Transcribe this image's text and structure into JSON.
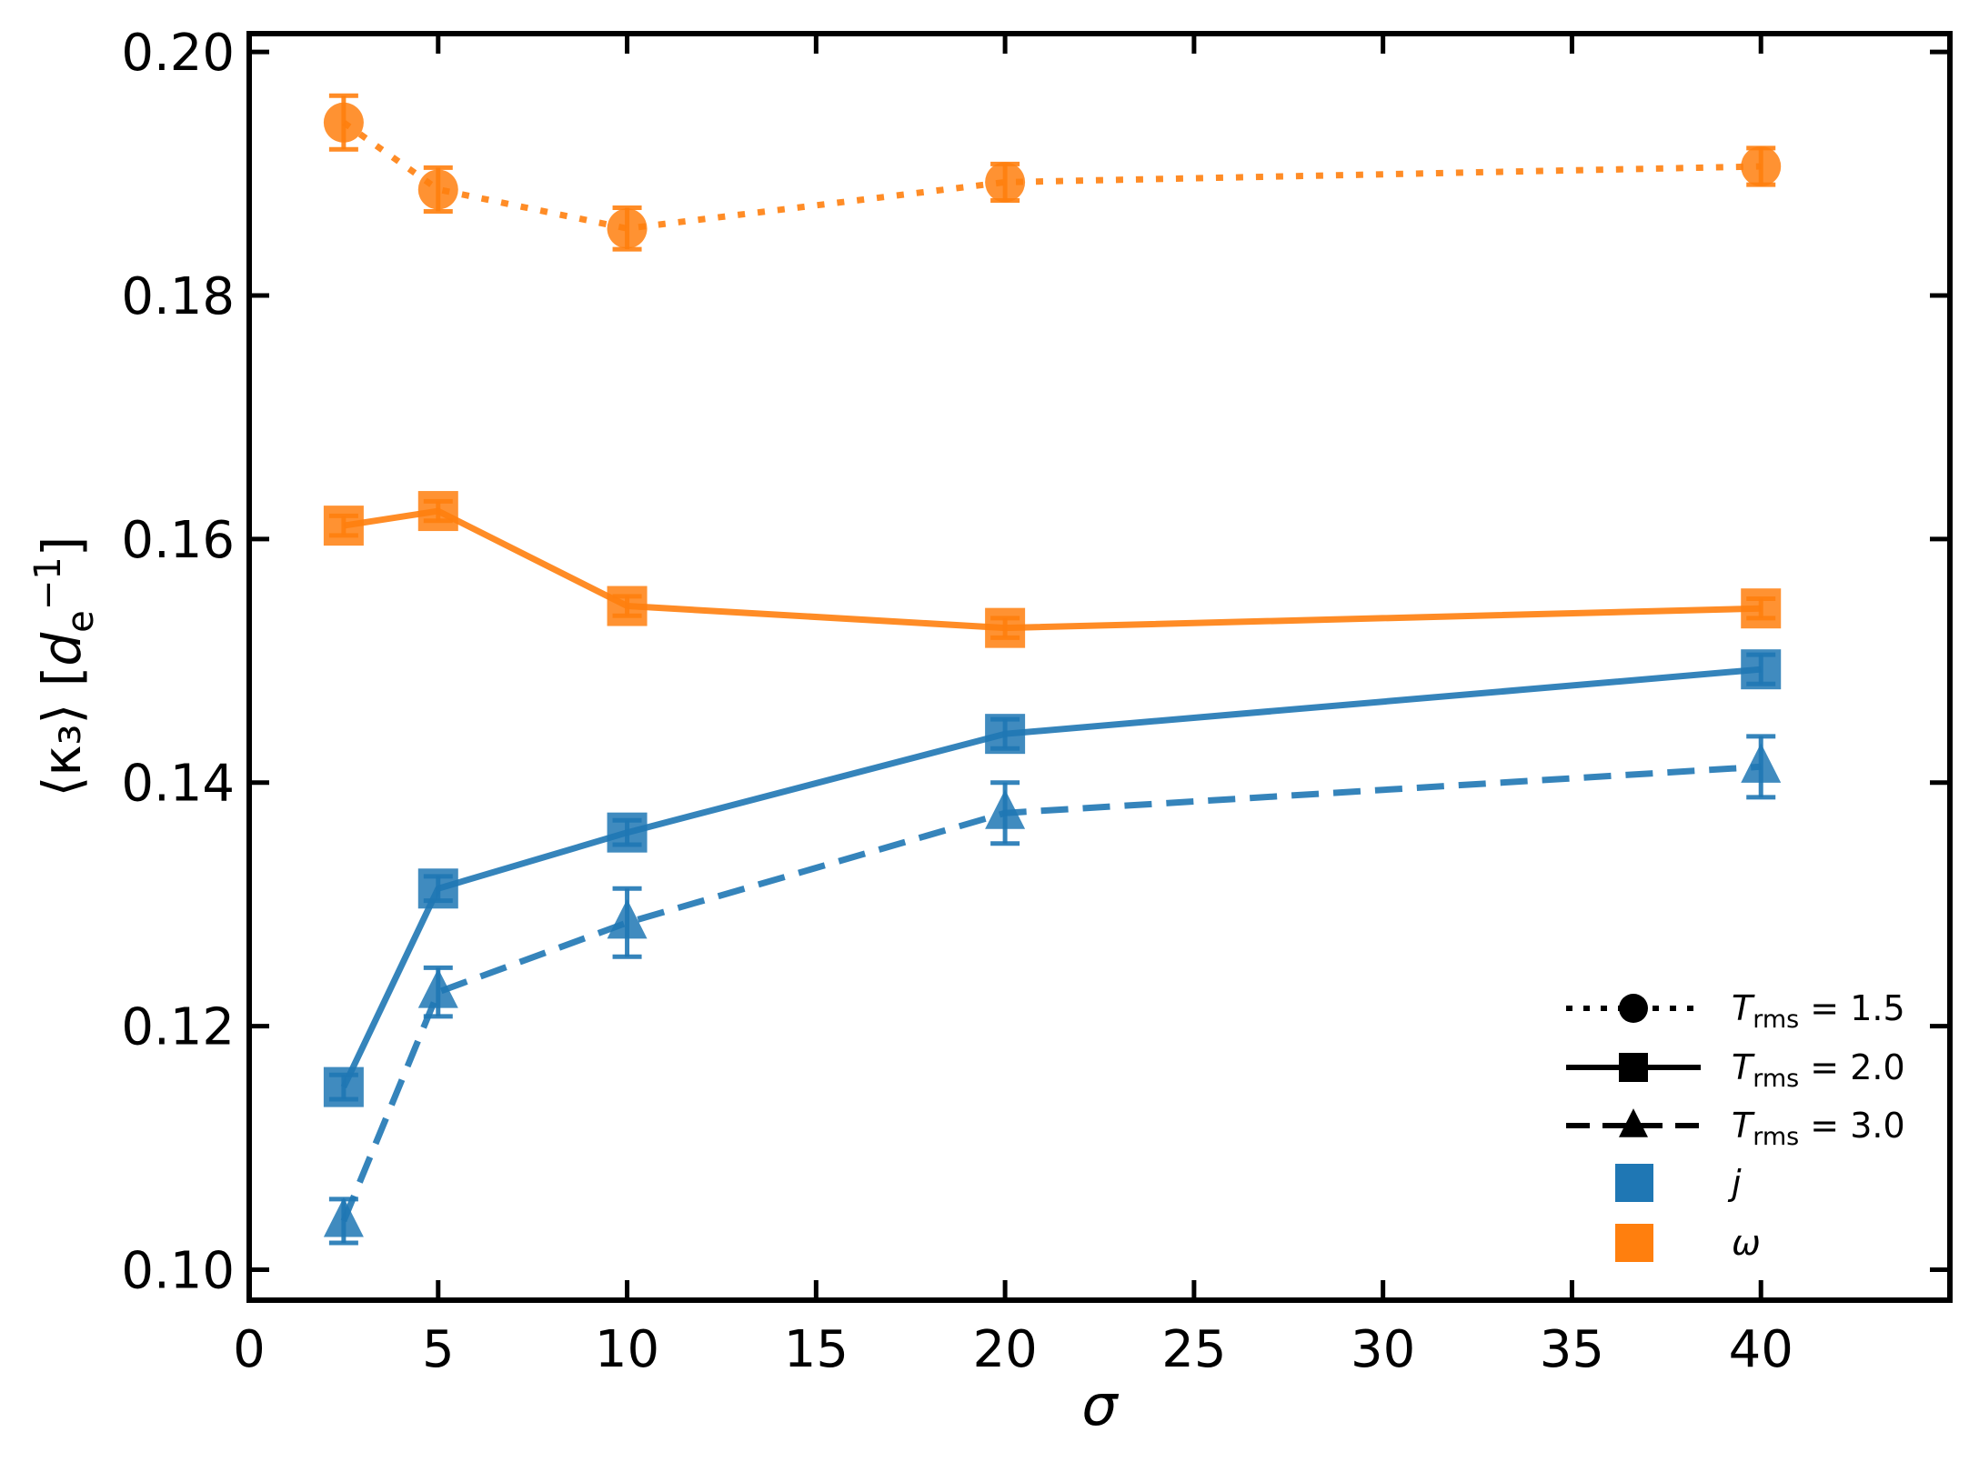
{
  "chart_data": {
    "type": "line",
    "title": "",
    "xlabel": "σ",
    "ylabel": {
      "main": "⟨κ₃⟩",
      "unit_base": "d",
      "unit_sub": "e",
      "unit_sup": "−1"
    },
    "xlim": [
      0,
      45
    ],
    "ylim": [
      0.0975,
      0.2015
    ],
    "xticks": [
      0,
      5,
      10,
      15,
      20,
      25,
      30,
      35,
      40
    ],
    "xtick_labels": [
      "0",
      "5",
      "10",
      "15",
      "20",
      "25",
      "30",
      "35",
      "40"
    ],
    "yticks": [
      0.1,
      0.12,
      0.14,
      0.16,
      0.18,
      0.2
    ],
    "ytick_labels": [
      "0.10",
      "0.12",
      "0.14",
      "0.16",
      "0.18",
      "0.20"
    ],
    "grid": false,
    "legend_position": "bottom-right",
    "x": [
      2.5,
      5,
      10,
      20,
      40
    ],
    "series": [
      {
        "name": "ω, T_rms = 1.5",
        "variable": "ω",
        "trms": "1.5",
        "color": "#ff7f0e",
        "linestyle": "dotted",
        "marker": "circle",
        "values": [
          0.1942,
          0.1887,
          0.1855,
          0.1893,
          0.1906
        ],
        "errors": [
          0.0022,
          0.0018,
          0.0017,
          0.0015,
          0.0015
        ]
      },
      {
        "name": "ω, T_rms = 2.0",
        "variable": "ω",
        "trms": "2.0",
        "color": "#ff7f0e",
        "linestyle": "solid",
        "marker": "square",
        "values": [
          0.1611,
          0.1623,
          0.1545,
          0.1527,
          0.1543
        ],
        "errors": [
          0.0008,
          0.0008,
          0.0008,
          0.0008,
          0.0008
        ]
      },
      {
        "name": "j, T_rms = 2.0",
        "variable": "j",
        "trms": "2.0",
        "color": "#1f77b4",
        "linestyle": "solid",
        "marker": "square",
        "values": [
          0.115,
          0.1313,
          0.1359,
          0.144,
          0.1493
        ],
        "errors": [
          0.001,
          0.001,
          0.001,
          0.0012,
          0.0012
        ]
      },
      {
        "name": "j, T_rms = 3.0",
        "variable": "j",
        "trms": "3.0",
        "color": "#1f77b4",
        "linestyle": "dashed",
        "marker": "triangle",
        "values": [
          0.104,
          0.1228,
          0.1285,
          0.1375,
          0.1413
        ],
        "errors": [
          0.0018,
          0.002,
          0.0028,
          0.0025,
          0.0025
        ]
      }
    ],
    "legend": {
      "styles": [
        {
          "symbol": "T",
          "subscript": "rms",
          "value": " = 1.5",
          "linestyle": "dotted",
          "marker": "circle"
        },
        {
          "symbol": "T",
          "subscript": "rms",
          "value": " = 2.0",
          "linestyle": "solid",
          "marker": "square"
        },
        {
          "symbol": "T",
          "subscript": "rms",
          "value": " = 3.0",
          "linestyle": "dashed",
          "marker": "triangle"
        }
      ],
      "colors": [
        {
          "label": "j",
          "color": "#1f77b4"
        },
        {
          "label": "ω",
          "color": "#ff7f0e"
        }
      ]
    }
  }
}
